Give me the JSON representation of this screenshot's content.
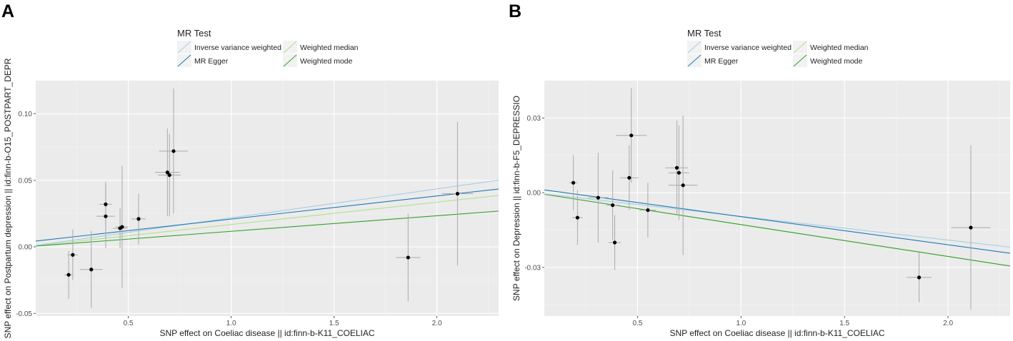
{
  "chart_data": [
    {
      "panel_label": "A",
      "type": "scatter",
      "title": "",
      "xlabel": "SNP effect on Coeliac disease || id:finn-b-K11_COELIAC",
      "ylabel": "SNP effect on Postpartum depression || id:finn-b-O15_POSTPART_DEPR",
      "xlim": [
        0.05,
        2.3
      ],
      "ylim": [
        -0.052,
        0.125
      ],
      "xticks": [
        0.5,
        1.0,
        1.5,
        2.0
      ],
      "xtick_labels": [
        "0.5",
        "1.0",
        "1.5",
        "2.0"
      ],
      "yticks": [
        -0.05,
        0.0,
        0.05,
        0.1
      ],
      "ytick_labels": [
        "-0.05",
        "0.00",
        "0.05",
        "0.10"
      ],
      "grid": true,
      "legend": {
        "title": "MR Test",
        "position": "top",
        "entries": [
          {
            "name": "Inverse variance weighted",
            "color": "#a6cee3"
          },
          {
            "name": "Weighted median",
            "color": "#b2df8a"
          },
          {
            "name": "MR Egger",
            "color": "#1f78b4"
          },
          {
            "name": "Weighted mode",
            "color": "#33a02c"
          }
        ]
      },
      "points": [
        {
          "x": 0.21,
          "y": -0.021,
          "xerr": 0.02,
          "yerr": 0.018
        },
        {
          "x": 0.23,
          "y": -0.006,
          "xerr": 0.025,
          "yerr": 0.019
        },
        {
          "x": 0.32,
          "y": -0.017,
          "xerr": 0.055,
          "yerr": 0.029
        },
        {
          "x": 0.39,
          "y": 0.032,
          "xerr": 0.03,
          "yerr": 0.017
        },
        {
          "x": 0.39,
          "y": 0.023,
          "xerr": 0.045,
          "yerr": 0.024
        },
        {
          "x": 0.46,
          "y": 0.014,
          "xerr": 0.035,
          "yerr": 0.015
        },
        {
          "x": 0.47,
          "y": 0.015,
          "xerr": 0.03,
          "yerr": 0.046
        },
        {
          "x": 0.55,
          "y": 0.021,
          "xerr": 0.035,
          "yerr": 0.019
        },
        {
          "x": 0.69,
          "y": 0.056,
          "xerr": 0.06,
          "yerr": 0.033
        },
        {
          "x": 0.7,
          "y": 0.054,
          "xerr": 0.055,
          "yerr": 0.031
        },
        {
          "x": 0.72,
          "y": 0.072,
          "xerr": 0.07,
          "yerr": 0.047
        },
        {
          "x": 1.86,
          "y": -0.008,
          "xerr": 0.06,
          "yerr": 0.033
        },
        {
          "x": 2.1,
          "y": 0.04,
          "xerr": 0.075,
          "yerr": 0.054
        }
      ],
      "series": [
        {
          "name": "Inverse variance weighted",
          "intercept": 0.0,
          "slope": 0.0218,
          "color": "#a6cee3"
        },
        {
          "name": "MR Egger",
          "intercept": 0.0035,
          "slope": 0.0174,
          "color": "#1f78b4"
        },
        {
          "name": "Weighted median",
          "intercept": 0.0,
          "slope": 0.0168,
          "color": "#b2df8a"
        },
        {
          "name": "Weighted mode",
          "intercept": 0.0,
          "slope": 0.0117,
          "color": "#33a02c"
        }
      ]
    },
    {
      "panel_label": "B",
      "type": "scatter",
      "title": "",
      "xlabel": "SNP effect on Coeliac disease || id:finn-b-K11_COELIAC",
      "ylabel": "SNP effect on Depression || id:finn-b-F5_DEPRESSIO",
      "xlim": [
        0.05,
        2.3
      ],
      "ylim": [
        -0.0495,
        0.045
      ],
      "xticks": [
        0.5,
        1.0,
        1.5,
        2.0
      ],
      "xtick_labels": [
        "0.5",
        "1.0",
        "1.5",
        "2.0"
      ],
      "yticks": [
        -0.03,
        0.0,
        0.03
      ],
      "ytick_labels": [
        "-0.03",
        "0.00",
        "0.03"
      ],
      "grid": true,
      "legend": {
        "title": "MR Test",
        "position": "top",
        "entries": [
          {
            "name": "Inverse variance weighted",
            "color": "#a6cee3"
          },
          {
            "name": "Weighted median",
            "color": "#b2df8a"
          },
          {
            "name": "MR Egger",
            "color": "#1f78b4"
          },
          {
            "name": "Weighted mode",
            "color": "#33a02c"
          }
        ]
      },
      "points": [
        {
          "x": 0.19,
          "y": 0.004,
          "xerr": 0.02,
          "yerr": 0.011
        },
        {
          "x": 0.21,
          "y": -0.01,
          "xerr": 0.025,
          "yerr": 0.011
        },
        {
          "x": 0.31,
          "y": -0.002,
          "xerr": 0.05,
          "yerr": 0.018
        },
        {
          "x": 0.38,
          "y": -0.005,
          "xerr": 0.03,
          "yerr": 0.014
        },
        {
          "x": 0.39,
          "y": -0.02,
          "xerr": 0.03,
          "yerr": 0.011
        },
        {
          "x": 0.47,
          "y": 0.023,
          "xerr": 0.075,
          "yerr": 0.019
        },
        {
          "x": 0.46,
          "y": 0.006,
          "xerr": 0.045,
          "yerr": 0.013
        },
        {
          "x": 0.55,
          "y": -0.007,
          "xerr": 0.04,
          "yerr": 0.011
        },
        {
          "x": 0.69,
          "y": 0.01,
          "xerr": 0.055,
          "yerr": 0.019
        },
        {
          "x": 0.7,
          "y": 0.008,
          "xerr": 0.05,
          "yerr": 0.019
        },
        {
          "x": 0.72,
          "y": 0.003,
          "xerr": 0.07,
          "yerr": 0.028
        },
        {
          "x": 1.86,
          "y": -0.034,
          "xerr": 0.06,
          "yerr": 0.01
        },
        {
          "x": 2.11,
          "y": -0.014,
          "xerr": 0.095,
          "yerr": 0.033
        }
      ],
      "series": [
        {
          "name": "Inverse variance weighted",
          "intercept": 0.0,
          "slope": -0.0095,
          "color": "#a6cee3"
        },
        {
          "name": "MR Egger",
          "intercept": 0.0017,
          "slope": -0.0113,
          "color": "#1f78b4"
        },
        {
          "name": "Weighted median",
          "intercept": 0.0,
          "slope": -0.0128,
          "color": "#b2df8a"
        },
        {
          "name": "Weighted mode",
          "intercept": 0.0,
          "slope": -0.0128,
          "color": "#33a02c"
        }
      ]
    }
  ]
}
